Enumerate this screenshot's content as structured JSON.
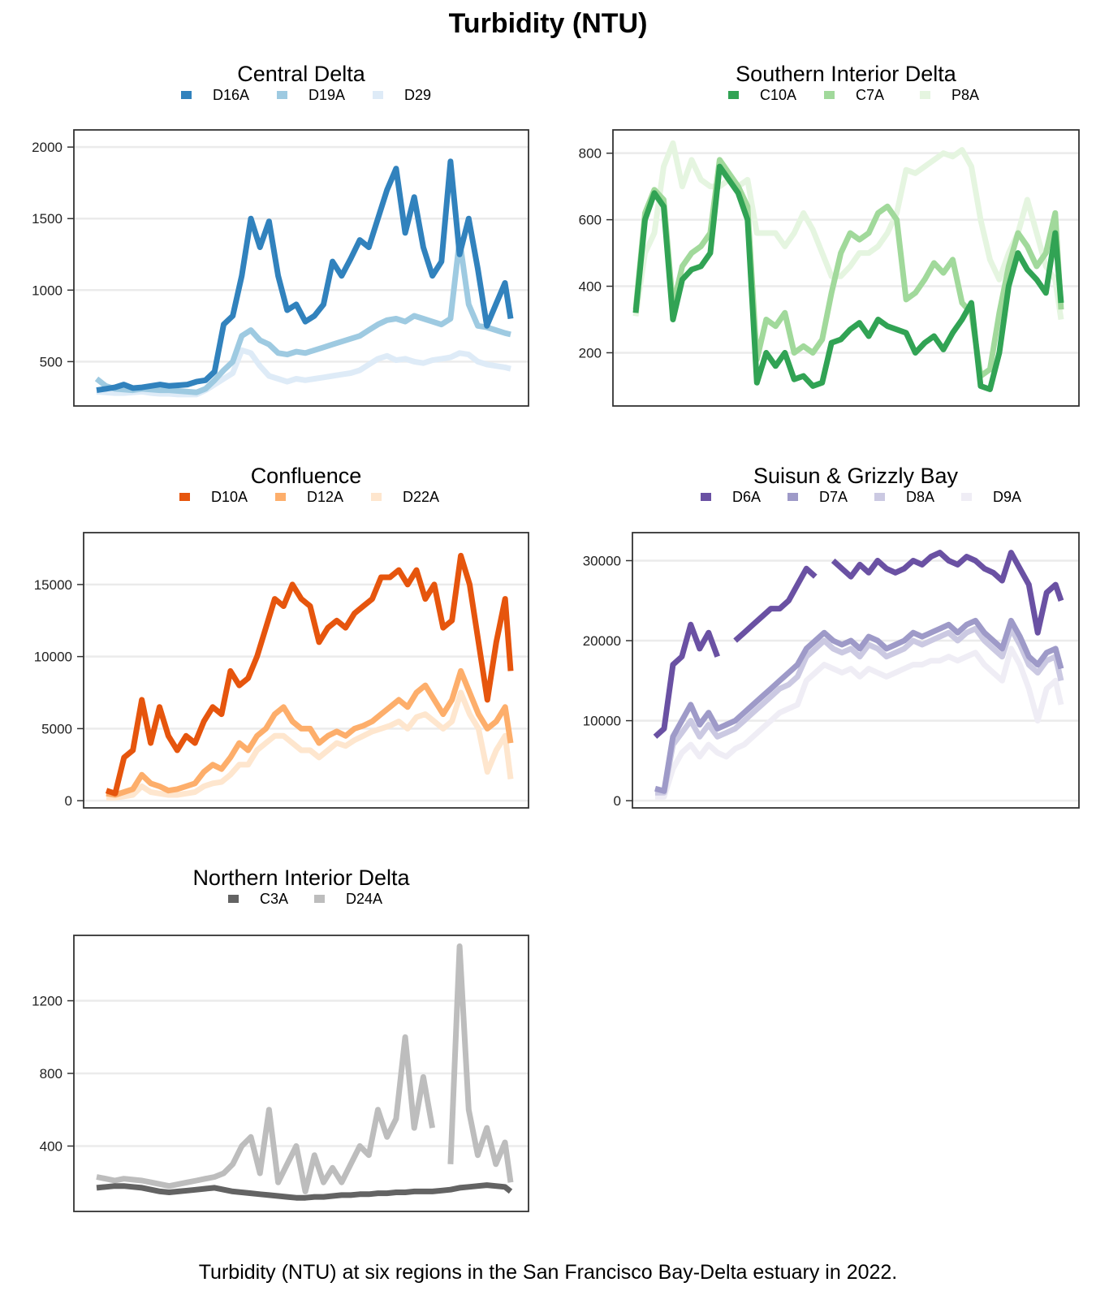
{
  "title": "Turbidity (NTU)",
  "caption": "Turbidity (NTU) at six regions in the San Francisco Bay-Delta estuary in 2022.",
  "chart_data": [
    {
      "type": "line",
      "title": "Central Delta",
      "grid": true,
      "legend": "top",
      "ylim": [
        190,
        2120
      ],
      "yticks": [
        500,
        1000,
        1500,
        2000
      ],
      "x": [
        0,
        8,
        16,
        24,
        32,
        40,
        48,
        56,
        64,
        72,
        80,
        88,
        96,
        104,
        112,
        120,
        128,
        136,
        144,
        152,
        160,
        168,
        176,
        184,
        192,
        200,
        208,
        216,
        224,
        232,
        240,
        248,
        256,
        264,
        272,
        280,
        288,
        296,
        304,
        312,
        320,
        328,
        336,
        344,
        352,
        360,
        365
      ],
      "series": [
        {
          "name": "D16A",
          "color": "#3182bd",
          "values": [
            300,
            310,
            320,
            340,
            315,
            320,
            330,
            340,
            330,
            335,
            340,
            360,
            370,
            430,
            760,
            820,
            1100,
            1500,
            1300,
            1480,
            1100,
            860,
            900,
            780,
            820,
            900,
            1200,
            1100,
            1220,
            1350,
            1300,
            1500,
            1700,
            1850,
            1400,
            1650,
            1300,
            1100,
            1200,
            1900,
            1250,
            1500,
            1150,
            750,
            900,
            1050,
            800
          ]
        },
        {
          "name": "D19A",
          "color": "#9ecae1",
          "values": [
            380,
            330,
            310,
            305,
            300,
            310,
            305,
            300,
            300,
            295,
            290,
            285,
            310,
            370,
            440,
            500,
            680,
            720,
            650,
            620,
            560,
            550,
            570,
            560,
            580,
            600,
            620,
            640,
            660,
            680,
            720,
            760,
            790,
            800,
            780,
            820,
            800,
            780,
            760,
            800,
            1350,
            900,
            750,
            740,
            720,
            700,
            690
          ]
        },
        {
          "name": "D29",
          "color": "#deebf7",
          "values": [
            290,
            285,
            280,
            280,
            285,
            290,
            280,
            275,
            275,
            270,
            270,
            270,
            300,
            340,
            380,
            420,
            580,
            560,
            470,
            400,
            380,
            360,
            380,
            370,
            380,
            390,
            400,
            410,
            420,
            440,
            480,
            520,
            540,
            510,
            520,
            500,
            490,
            510,
            520,
            530,
            560,
            550,
            500,
            480,
            470,
            460,
            450
          ]
        }
      ]
    },
    {
      "type": "line",
      "title": "Southern Interior Delta",
      "grid": true,
      "legend": "top",
      "ylim": [
        40,
        870
      ],
      "yticks": [
        200,
        400,
        600,
        800
      ],
      "x": [
        0,
        8,
        16,
        24,
        32,
        40,
        48,
        56,
        64,
        72,
        80,
        88,
        96,
        104,
        112,
        120,
        128,
        136,
        144,
        152,
        160,
        168,
        176,
        184,
        192,
        200,
        208,
        216,
        224,
        232,
        240,
        248,
        256,
        264,
        272,
        280,
        288,
        296,
        304,
        312,
        320,
        328,
        336,
        344,
        352,
        360,
        365
      ],
      "series": [
        {
          "name": "C10A",
          "color": "#31a354",
          "values": [
            320,
            600,
            680,
            640,
            300,
            420,
            450,
            460,
            500,
            760,
            720,
            680,
            600,
            110,
            200,
            160,
            200,
            120,
            130,
            100,
            110,
            230,
            240,
            270,
            290,
            250,
            300,
            280,
            270,
            260,
            200,
            230,
            250,
            210,
            260,
            300,
            350,
            100,
            90,
            200,
            400,
            500,
            450,
            420,
            380,
            560,
            350
          ]
        },
        {
          "name": "C7A",
          "color": "#a1d99b",
          "values": [
            330,
            620,
            690,
            660,
            340,
            460,
            500,
            520,
            560,
            780,
            740,
            700,
            640,
            180,
            300,
            280,
            320,
            200,
            220,
            200,
            240,
            380,
            500,
            560,
            540,
            560,
            620,
            640,
            600,
            360,
            380,
            420,
            470,
            440,
            480,
            350,
            320,
            130,
            150,
            320,
            460,
            560,
            520,
            460,
            500,
            620,
            330
          ]
        },
        {
          "name": "P8A",
          "color": "#e5f5e0",
          "values": [
            310,
            500,
            560,
            760,
            830,
            700,
            780,
            720,
            700,
            700,
            720,
            700,
            720,
            560,
            560,
            560,
            520,
            560,
            620,
            570,
            500,
            430,
            430,
            460,
            500,
            500,
            520,
            560,
            620,
            750,
            740,
            760,
            780,
            800,
            790,
            810,
            760,
            600,
            480,
            420,
            500,
            560,
            660,
            560,
            460,
            420,
            300
          ]
        }
      ]
    },
    {
      "type": "line",
      "title": "Confluence",
      "grid": true,
      "legend": "top",
      "ylim": [
        -500,
        18600
      ],
      "yticks": [
        0,
        5000,
        10000,
        15000
      ],
      "x": [
        0,
        8,
        16,
        24,
        32,
        40,
        48,
        56,
        64,
        72,
        80,
        88,
        96,
        104,
        112,
        120,
        128,
        136,
        144,
        152,
        160,
        168,
        176,
        184,
        192,
        200,
        208,
        216,
        224,
        232,
        240,
        248,
        256,
        264,
        272,
        280,
        288,
        296,
        304,
        312,
        320,
        328,
        336,
        344,
        352,
        360,
        365
      ],
      "series": [
        {
          "name": "D10A",
          "color": "#e6550d",
          "values": [
            700,
            500,
            3000,
            3500,
            7000,
            4000,
            6500,
            4500,
            3500,
            4500,
            4000,
            5500,
            6500,
            6000,
            9000,
            8000,
            8500,
            10000,
            12000,
            14000,
            13500,
            15000,
            14000,
            13500,
            11000,
            12000,
            12500,
            12000,
            13000,
            13500,
            14000,
            15500,
            15500,
            16000,
            15000,
            16000,
            14000,
            15000,
            12000,
            12500,
            17000,
            15000,
            11000,
            7000,
            11000,
            14000,
            9000
          ]
        },
        {
          "name": "D12A",
          "color": "#fdae6b",
          "values": [
            500,
            400,
            600,
            800,
            1800,
            1200,
            1000,
            700,
            800,
            1000,
            1200,
            2000,
            2500,
            2200,
            3000,
            4000,
            3500,
            4500,
            5000,
            6000,
            6500,
            5500,
            5000,
            5000,
            4000,
            4500,
            4800,
            4500,
            5000,
            5200,
            5500,
            6000,
            6500,
            7000,
            6500,
            7500,
            8000,
            7000,
            6000,
            7000,
            9000,
            7500,
            6000,
            5000,
            5500,
            6500,
            4000
          ]
        },
        {
          "name": "D22A",
          "color": "#fee6ce",
          "values": [
            200,
            200,
            300,
            400,
            1000,
            600,
            500,
            400,
            400,
            500,
            600,
            1000,
            1200,
            1300,
            1800,
            2500,
            2500,
            3500,
            4000,
            4500,
            4500,
            4000,
            3500,
            3500,
            3000,
            3500,
            4000,
            3800,
            4200,
            4500,
            4800,
            5000,
            5200,
            5500,
            5000,
            5800,
            6000,
            5500,
            5000,
            5500,
            7500,
            6000,
            5000,
            2000,
            3500,
            4500,
            1500
          ]
        }
      ]
    },
    {
      "type": "line",
      "title": "Suisun & Grizzly Bay",
      "grid": true,
      "legend": "top",
      "ylim": [
        -900,
        33500
      ],
      "yticks": [
        0,
        10000,
        20000,
        30000
      ],
      "x": [
        0,
        8,
        16,
        24,
        32,
        40,
        48,
        56,
        64,
        72,
        80,
        88,
        96,
        104,
        112,
        120,
        128,
        136,
        144,
        152,
        160,
        168,
        176,
        184,
        192,
        200,
        208,
        216,
        224,
        232,
        240,
        248,
        256,
        264,
        272,
        280,
        288,
        296,
        304,
        312,
        320,
        328,
        336,
        344,
        352,
        360,
        365
      ],
      "series": [
        {
          "name": "D6A",
          "color": "#6a51a3",
          "values": [
            8000,
            9000,
            17000,
            18000,
            22000,
            19000,
            21000,
            18000,
            null,
            20000,
            21000,
            22000,
            23000,
            24000,
            24000,
            25000,
            27000,
            29000,
            28000,
            null,
            30000,
            29000,
            28000,
            29500,
            28500,
            30000,
            29000,
            28500,
            29000,
            30000,
            29500,
            30500,
            31000,
            30000,
            29500,
            30500,
            30000,
            29000,
            28500,
            27500,
            31000,
            29000,
            27000,
            21000,
            26000,
            27000,
            25000
          ]
        },
        {
          "name": "D7A",
          "color": "#9e9ac8",
          "values": [
            1500,
            1200,
            8000,
            10000,
            12000,
            9500,
            11000,
            9000,
            9500,
            10000,
            11000,
            12000,
            13000,
            14000,
            15000,
            16000,
            17000,
            19000,
            20000,
            21000,
            20000,
            19500,
            20000,
            19000,
            20500,
            20000,
            19000,
            19500,
            20000,
            21000,
            20500,
            21000,
            21500,
            22000,
            21000,
            22000,
            22500,
            21000,
            20000,
            19000,
            22500,
            20500,
            18000,
            17000,
            18500,
            19000,
            16500
          ]
        },
        {
          "name": "D8A",
          "color": "#cbc9e2",
          "values": [
            1000,
            1000,
            7000,
            8500,
            10000,
            8000,
            9500,
            8000,
            8500,
            9000,
            10000,
            11000,
            12000,
            13000,
            14000,
            14500,
            15500,
            18000,
            19000,
            20000,
            19000,
            18500,
            19000,
            18000,
            19500,
            19000,
            18000,
            18500,
            19000,
            20000,
            19500,
            20000,
            20500,
            21000,
            20000,
            21000,
            21500,
            20000,
            19000,
            18000,
            21500,
            19500,
            17000,
            16000,
            17500,
            18000,
            15000
          ]
        },
        {
          "name": "D9A",
          "color": "#efedf5",
          "values": [
            500,
            500,
            4000,
            6000,
            7000,
            5500,
            7000,
            6000,
            5500,
            6500,
            7000,
            8000,
            9000,
            10000,
            11000,
            11500,
            12000,
            15000,
            16000,
            17000,
            16500,
            16000,
            16500,
            15500,
            16500,
            16000,
            15500,
            16000,
            16500,
            17000,
            17000,
            17500,
            17500,
            18000,
            17500,
            18000,
            18500,
            17000,
            16000,
            15000,
            19000,
            17000,
            14000,
            10000,
            14000,
            15000,
            12000
          ]
        }
      ]
    },
    {
      "type": "line",
      "title": "Northern Interior Delta",
      "grid": true,
      "legend": "top",
      "ylim": [
        40,
        1560
      ],
      "yticks": [
        400,
        800,
        1200
      ],
      "x": [
        0,
        8,
        16,
        24,
        32,
        40,
        48,
        56,
        64,
        72,
        80,
        88,
        96,
        104,
        112,
        120,
        128,
        136,
        144,
        152,
        160,
        168,
        176,
        184,
        192,
        200,
        208,
        216,
        224,
        232,
        240,
        248,
        256,
        264,
        272,
        280,
        288,
        296,
        304,
        312,
        320,
        328,
        336,
        344,
        352,
        360,
        365
      ],
      "series": [
        {
          "name": "C3A",
          "color": "#636363",
          "values": [
            170,
            175,
            180,
            180,
            175,
            170,
            160,
            150,
            145,
            150,
            155,
            160,
            165,
            170,
            160,
            150,
            145,
            140,
            135,
            130,
            125,
            120,
            115,
            115,
            120,
            120,
            125,
            130,
            130,
            135,
            135,
            140,
            140,
            145,
            145,
            150,
            150,
            150,
            155,
            160,
            170,
            175,
            180,
            185,
            180,
            175,
            150
          ]
        },
        {
          "name": "D24A",
          "color": "#bdbdbd",
          "values": [
            230,
            220,
            210,
            220,
            215,
            210,
            200,
            190,
            180,
            190,
            200,
            210,
            220,
            230,
            250,
            300,
            400,
            450,
            250,
            600,
            200,
            300,
            400,
            150,
            350,
            200,
            280,
            200,
            300,
            400,
            350,
            600,
            450,
            550,
            1000,
            500,
            780,
            500,
            null,
            300,
            1500,
            600,
            350,
            500,
            300,
            420,
            200
          ]
        }
      ]
    }
  ]
}
